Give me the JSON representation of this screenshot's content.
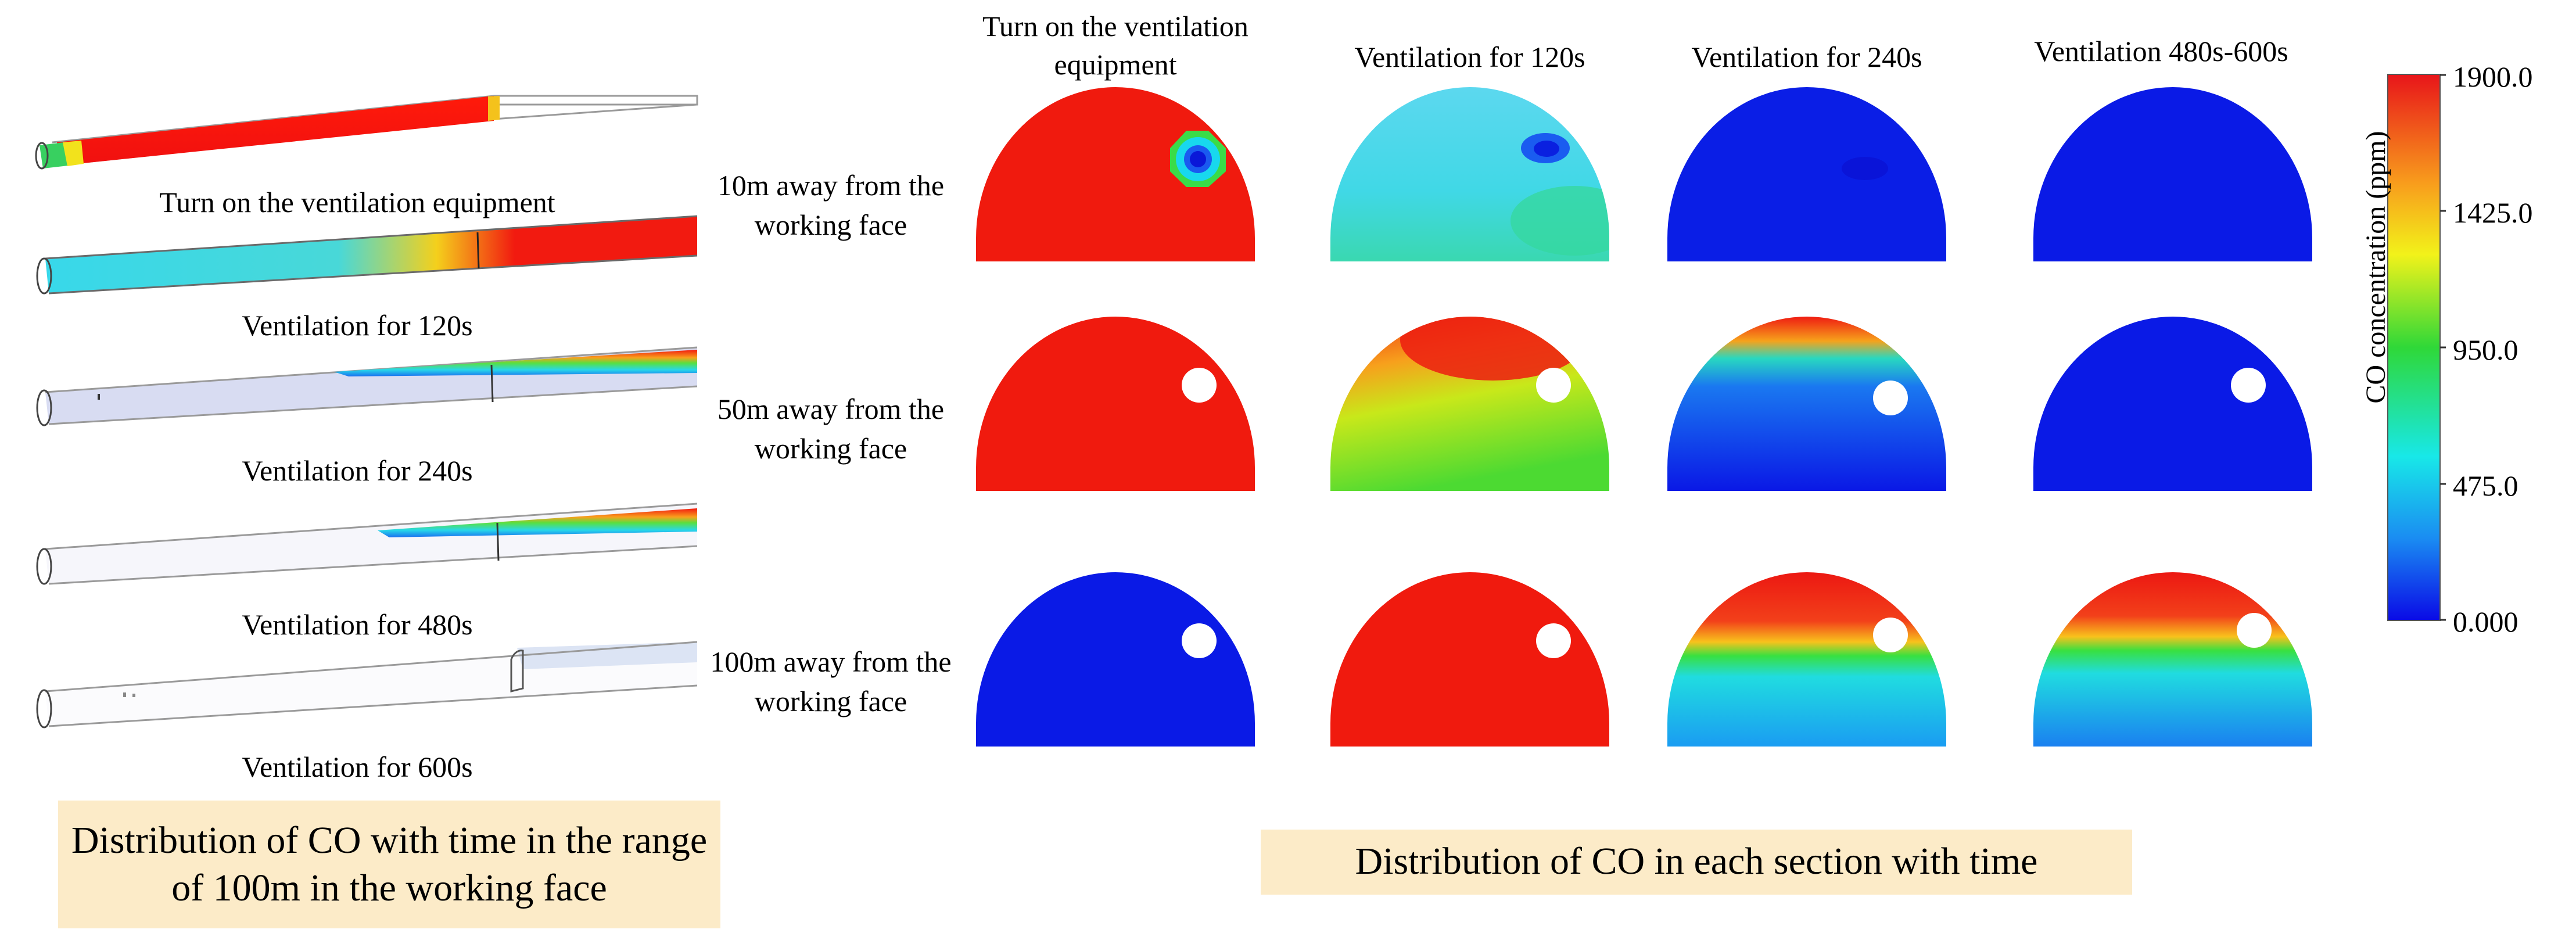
{
  "left_panel": {
    "labels": [
      "Turn on the ventilation equipment",
      "Ventilation for 120s",
      "Ventilation for 240s",
      "Ventilation for 480s",
      "Ventilation for 600s"
    ],
    "caption": "Distribution of CO with time in the range of 100m in the working face"
  },
  "grid": {
    "columns": [
      "Turn on the ventilation equipment",
      "Ventilation for 120s",
      "Ventilation for 240s",
      "Ventilation 480s-600s"
    ],
    "rows": [
      "10m away from the working face",
      "50m away from the working face",
      "100m away from the working face"
    ],
    "caption": "Distribution of CO in each section with time"
  },
  "colorbar": {
    "title": "CO concentration (ppm)",
    "ticks": [
      "1900.0",
      "1425.0",
      "950.0",
      "475.0",
      "0.000"
    ],
    "min": 0,
    "max": 1900,
    "colors": [
      "#e8151a",
      "#f89d1c",
      "#f2f21a",
      "#2fd838",
      "#18e8e8",
      "#1a8cf2",
      "#0a0ae6"
    ]
  }
}
